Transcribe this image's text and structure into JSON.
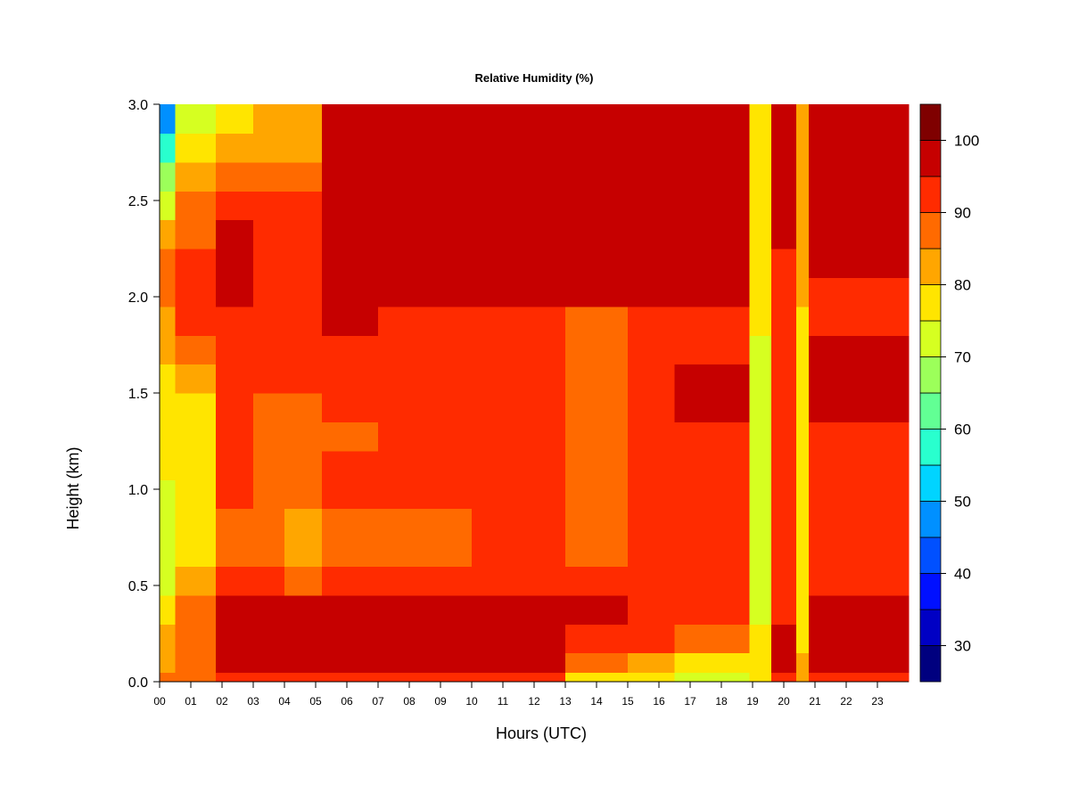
{
  "chart_data": {
    "type": "heatmap",
    "title": "Relative Humidity (%)",
    "xlabel": "Hours (UTC)",
    "ylabel": "Height (km)",
    "xlim": [
      0,
      24
    ],
    "ylim": [
      0.0,
      3.0
    ],
    "x_ticks": [
      "00",
      "01",
      "02",
      "03",
      "04",
      "05",
      "06",
      "07",
      "08",
      "09",
      "10",
      "11",
      "12",
      "13",
      "14",
      "15",
      "16",
      "17",
      "18",
      "19",
      "20",
      "21",
      "22",
      "23"
    ],
    "y_ticks": [
      "0.0",
      "0.5",
      "1.0",
      "1.5",
      "2.0",
      "2.5",
      "3.0"
    ],
    "colorbar": {
      "min": 25,
      "max": 100,
      "step": 5,
      "tick_labels": [
        "30",
        "40",
        "50",
        "60",
        "70",
        "80",
        "90",
        "100"
      ],
      "colors": [
        "#00007f",
        "#0000c4",
        "#0010ff",
        "#0050ff",
        "#0090ff",
        "#00d4ff",
        "#29ffce",
        "#62ff94",
        "#9cff5a",
        "#d6ff21",
        "#ffe500",
        "#ffa600",
        "#ff6a00",
        "#ff2b00",
        "#c60000"
      ],
      "top_color": "#7f0000"
    },
    "height_levels_km": [
      0.0,
      0.05,
      0.15,
      0.3,
      0.45,
      0.6,
      0.75,
      0.9,
      1.05,
      1.2,
      1.35,
      1.5,
      1.65,
      1.8,
      1.95,
      2.1,
      2.25,
      2.4,
      2.55,
      2.7,
      2.85,
      3.0
    ],
    "hour_periods": [
      {
        "from": 0.0,
        "to": 0.5,
        "rh": [
          88,
          84,
          84,
          76,
          74,
          72,
          70,
          72,
          74,
          76,
          74,
          76,
          80,
          82,
          84,
          86,
          88,
          78,
          70,
          60,
          52,
          45
        ]
      },
      {
        "from": 0.5,
        "to": 1.8,
        "rh": [
          88,
          88,
          90,
          88,
          84,
          77,
          75,
          76,
          76,
          76,
          76,
          78,
          84,
          88,
          92,
          94,
          92,
          86,
          84,
          78,
          74,
          72
        ]
      },
      {
        "from": 1.8,
        "to": 3.0,
        "rh": [
          90,
          96,
          98,
          98,
          94,
          90,
          89,
          90,
          92,
          90,
          90,
          91,
          93,
          92,
          94,
          96,
          97,
          94,
          90,
          84,
          80,
          78
        ]
      },
      {
        "from": 3.0,
        "to": 4.0,
        "rh": [
          90,
          96,
          98,
          98,
          94,
          88,
          86,
          88,
          90,
          88,
          88,
          90,
          92,
          90,
          92,
          94,
          95,
          92,
          88,
          84,
          82,
          80
        ]
      },
      {
        "from": 4.0,
        "to": 5.2,
        "rh": [
          90,
          96,
          99,
          98,
          93,
          84,
          82,
          86,
          88,
          87,
          87,
          89,
          91,
          90,
          92,
          94,
          95,
          92,
          88,
          84,
          82,
          80
        ]
      },
      {
        "from": 5.2,
        "to": 7.0,
        "rh": [
          92,
          97,
          99,
          99,
          95,
          88,
          88,
          89,
          91,
          89,
          89,
          91,
          93,
          92,
          98,
          99,
          99,
          99,
          99,
          99,
          99,
          99
        ]
      },
      {
        "from": 7.0,
        "to": 10.0,
        "rh": [
          92,
          97,
          99,
          99,
          95,
          90,
          89,
          90,
          92,
          90,
          90,
          91,
          93,
          92,
          96,
          99,
          99,
          99,
          99,
          99,
          99,
          99
        ]
      },
      {
        "from": 10.0,
        "to": 13.0,
        "rh": [
          90,
          95,
          99,
          99,
          94,
          90,
          90,
          90,
          91,
          90,
          90,
          90,
          91,
          90,
          94,
          99,
          99,
          99,
          99,
          99,
          99,
          99
        ]
      },
      {
        "from": 13.0,
        "to": 15.0,
        "rh": [
          74,
          82,
          90,
          97,
          94,
          88,
          86,
          86,
          87,
          86,
          85,
          86,
          88,
          86,
          92,
          99,
          99,
          99,
          99,
          99,
          99,
          99
        ]
      },
      {
        "from": 15.0,
        "to": 16.5,
        "rh": [
          74,
          78,
          88,
          95,
          94,
          90,
          92,
          93,
          93,
          92,
          93,
          94,
          95,
          91,
          93,
          99,
          99,
          99,
          99,
          99,
          99,
          99
        ]
      },
      {
        "from": 16.5,
        "to": 18.9,
        "rh": [
          70,
          72,
          82,
          90,
          93,
          90,
          92,
          94,
          94,
          93,
          95,
          97,
          96,
          91,
          93,
          99,
          99,
          99,
          99,
          99,
          99,
          99
        ]
      },
      {
        "from": 18.9,
        "to": 19.6,
        "rh": [
          76,
          78,
          76,
          75,
          74,
          74,
          74,
          73,
          73,
          73,
          73,
          73,
          74,
          74,
          76,
          77,
          78,
          78,
          78,
          78,
          78,
          78
        ]
      },
      {
        "from": 19.6,
        "to": 20.4,
        "rh": [
          92,
          96,
          97,
          95,
          93,
          91,
          91,
          91,
          91,
          91,
          92,
          93,
          94,
          93,
          93,
          94,
          95,
          95,
          96,
          96,
          96,
          96
        ]
      },
      {
        "from": 20.4,
        "to": 20.8,
        "rh": [
          84,
          82,
          80,
          78,
          78,
          77,
          77,
          77,
          77,
          77,
          78,
          78,
          79,
          79,
          80,
          80,
          80,
          80,
          80,
          80,
          80,
          80
        ]
      },
      {
        "from": 20.8,
        "to": 24.0,
        "rh": [
          88,
          96,
          98,
          97,
          95,
          93,
          93,
          93,
          94,
          94,
          95,
          96,
          96,
          95,
          94,
          95,
          96,
          96,
          96,
          96,
          96,
          96
        ]
      }
    ]
  }
}
